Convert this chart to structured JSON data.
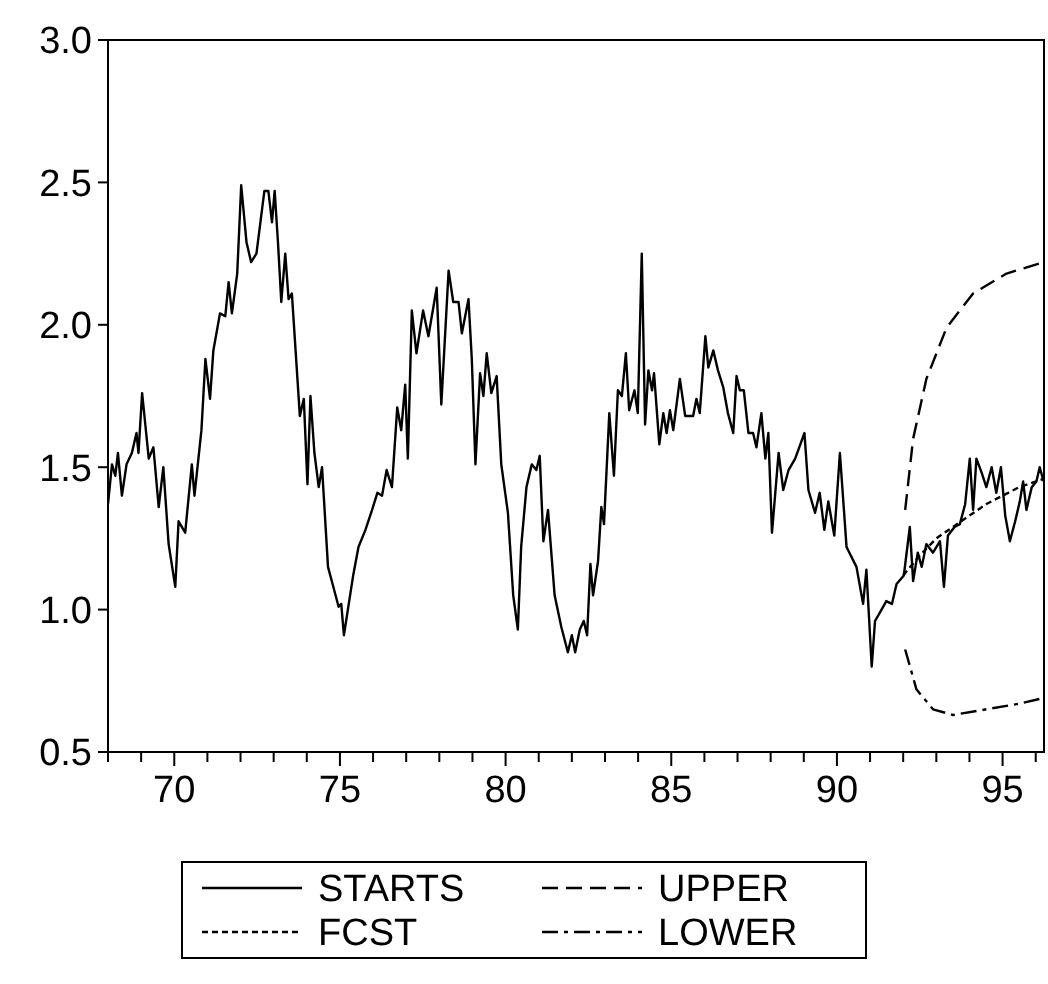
{
  "chart_data": {
    "type": "line",
    "xlim": [
      68,
      96.25
    ],
    "ylim": [
      0.5,
      3.0
    ],
    "yticks": [
      0.5,
      {
        "value": 1,
        "label": "1.0"
      },
      1.5,
      {
        "value": 2,
        "label": "2.0"
      },
      2.5,
      {
        "value": 3,
        "label": "3.0"
      }
    ],
    "xticks": [
      {
        "value": 68,
        "label": null
      },
      {
        "value": 69,
        "label": null
      },
      70,
      {
        "value": 71,
        "label": null
      },
      {
        "value": 72,
        "label": null
      },
      {
        "value": 73,
        "label": null
      },
      {
        "value": 74,
        "label": null
      },
      75,
      {
        "value": 76,
        "label": null
      },
      {
        "value": 77,
        "label": null
      },
      {
        "value": 78,
        "label": null
      },
      {
        "value": 79,
        "label": null
      },
      80,
      {
        "value": 81,
        "label": null
      },
      {
        "value": 82,
        "label": null
      },
      {
        "value": 83,
        "label": null
      },
      {
        "value": 84,
        "label": null
      },
      85,
      {
        "value": 86,
        "label": null
      },
      {
        "value": 87,
        "label": null
      },
      {
        "value": 88,
        "label": null
      },
      {
        "value": 89,
        "label": null
      },
      90,
      {
        "value": 91,
        "label": null
      },
      {
        "value": 92,
        "label": null
      },
      {
        "value": 93,
        "label": null
      },
      {
        "value": 94,
        "label": null
      },
      95,
      {
        "value": 96,
        "label": null
      }
    ],
    "legend": "bottom",
    "grid": false,
    "series": [
      {
        "name": "STARTS",
        "color": "#000000",
        "line_style": "solid",
        "x": [
          68.0,
          68.12,
          68.22,
          68.3,
          68.42,
          68.56,
          68.72,
          68.86,
          68.92,
          69.03,
          69.23,
          69.37,
          69.53,
          69.67,
          69.83,
          70.03,
          70.13,
          70.33,
          70.53,
          70.61,
          70.82,
          70.94,
          71.08,
          71.18,
          71.38,
          71.54,
          71.64,
          71.74,
          71.9,
          72.02,
          72.18,
          72.32,
          72.48,
          72.72,
          72.84,
          72.95,
          73.03,
          73.13,
          73.23,
          73.35,
          73.45,
          73.55,
          73.79,
          73.91,
          74.02,
          74.11,
          74.23,
          74.36,
          74.46,
          74.64,
          74.8,
          74.96,
          75.04,
          75.12,
          75.24,
          75.4,
          75.56,
          75.77,
          75.97,
          76.13,
          76.27,
          76.41,
          76.57,
          76.73,
          76.85,
          76.97,
          77.05,
          77.17,
          77.31,
          77.51,
          77.67,
          77.92,
          78.06,
          78.28,
          78.42,
          78.58,
          78.68,
          78.88,
          78.98,
          79.09,
          79.23,
          79.33,
          79.43,
          79.57,
          79.73,
          79.87,
          80.07,
          80.23,
          80.37,
          80.47,
          80.63,
          80.79,
          80.93,
          81.03,
          81.14,
          81.28,
          81.48,
          81.68,
          81.88,
          82.0,
          82.1,
          82.24,
          82.36,
          82.46,
          82.56,
          82.64,
          82.79,
          82.89,
          82.97,
          83.13,
          83.27,
          83.39,
          83.51,
          83.63,
          83.73,
          83.89,
          83.99,
          84.11,
          84.21,
          84.31,
          84.42,
          84.48,
          84.64,
          84.76,
          84.86,
          84.96,
          85.06,
          85.26,
          85.42,
          85.66,
          85.76,
          85.86,
          86.03,
          86.12,
          86.27,
          86.41,
          86.57,
          86.71,
          86.87,
          86.97,
          87.07,
          87.19,
          87.33,
          87.47,
          87.57,
          87.72,
          87.84,
          87.93,
          88.04,
          88.24,
          88.38,
          88.54,
          88.74,
          89.02,
          89.14,
          89.34,
          89.48,
          89.62,
          89.74,
          89.92,
          90.09,
          90.29,
          90.59,
          90.79,
          90.89,
          91.05,
          91.15,
          91.3,
          91.49,
          91.66,
          91.8,
          92.02,
          92.2,
          92.3,
          92.44,
          92.56,
          92.7,
          92.9,
          93.11,
          93.23,
          93.35,
          93.55,
          93.71,
          93.87,
          94.01,
          94.11,
          94.21,
          94.37,
          94.51,
          94.67,
          94.81,
          94.95,
          95.08,
          95.22,
          95.38,
          95.52,
          95.62,
          95.72,
          95.88,
          96.02,
          96.12,
          96.24
        ],
        "values": [
          1.37,
          1.51,
          1.47,
          1.55,
          1.4,
          1.51,
          1.55,
          1.62,
          1.55,
          1.76,
          1.53,
          1.57,
          1.36,
          1.5,
          1.23,
          1.08,
          1.31,
          1.27,
          1.51,
          1.4,
          1.63,
          1.88,
          1.74,
          1.91,
          2.04,
          2.03,
          2.15,
          2.04,
          2.18,
          2.49,
          2.29,
          2.22,
          2.25,
          2.47,
          2.47,
          2.36,
          2.47,
          2.29,
          2.08,
          2.25,
          2.09,
          2.11,
          1.68,
          1.74,
          1.44,
          1.75,
          1.55,
          1.43,
          1.5,
          1.15,
          1.08,
          1.01,
          1.02,
          0.91,
          1.0,
          1.12,
          1.22,
          1.28,
          1.35,
          1.41,
          1.4,
          1.49,
          1.43,
          1.71,
          1.63,
          1.79,
          1.53,
          2.05,
          1.9,
          2.05,
          1.96,
          2.13,
          1.72,
          2.19,
          2.08,
          2.08,
          1.97,
          2.09,
          1.88,
          1.51,
          1.83,
          1.75,
          1.9,
          1.76,
          1.82,
          1.51,
          1.34,
          1.05,
          0.93,
          1.22,
          1.43,
          1.51,
          1.49,
          1.54,
          1.24,
          1.35,
          1.05,
          0.94,
          0.85,
          0.91,
          0.85,
          0.93,
          0.96,
          0.91,
          1.16,
          1.05,
          1.17,
          1.36,
          1.3,
          1.69,
          1.47,
          1.77,
          1.75,
          1.9,
          1.7,
          1.77,
          1.69,
          2.25,
          1.65,
          1.84,
          1.77,
          1.83,
          1.58,
          1.69,
          1.62,
          1.7,
          1.63,
          1.81,
          1.68,
          1.68,
          1.74,
          1.69,
          1.96,
          1.85,
          1.91,
          1.84,
          1.78,
          1.69,
          1.62,
          1.82,
          1.77,
          1.77,
          1.62,
          1.62,
          1.57,
          1.69,
          1.53,
          1.62,
          1.27,
          1.55,
          1.42,
          1.49,
          1.53,
          1.62,
          1.42,
          1.34,
          1.41,
          1.28,
          1.38,
          1.26,
          1.55,
          1.22,
          1.15,
          1.02,
          1.14,
          0.8,
          0.96,
          0.99,
          1.03,
          1.02,
          1.09,
          1.12,
          1.29,
          1.1,
          1.2,
          1.15,
          1.23,
          1.2,
          1.24,
          1.08,
          1.26,
          1.29,
          1.3,
          1.37,
          1.53,
          1.35,
          1.53,
          1.48,
          1.43,
          1.5,
          1.41,
          1.5,
          1.33,
          1.24,
          1.31,
          1.38,
          1.45,
          1.35,
          1.43,
          1.45,
          1.5,
          1.45
        ]
      },
      {
        "name": "FCST",
        "color": "#000000",
        "line_style": "dotted",
        "x": [
          92.0,
          92.5,
          93.0,
          93.5,
          94.0,
          94.5,
          95.0,
          95.5,
          96.25
        ],
        "values": [
          1.12,
          1.19,
          1.25,
          1.29,
          1.33,
          1.37,
          1.4,
          1.43,
          1.46
        ]
      },
      {
        "name": "UPPER",
        "color": "#000000",
        "line_style": "dashed",
        "x": [
          92.06,
          92.3,
          92.7,
          93.31,
          94.11,
          95.12,
          96.25
        ],
        "values": [
          1.35,
          1.6,
          1.81,
          1.99,
          2.11,
          2.18,
          2.22
        ]
      },
      {
        "name": "LOWER",
        "color": "#000000",
        "line_style": "dashdot",
        "x": [
          92.06,
          92.4,
          92.9,
          93.5,
          94.51,
          95.52,
          96.25
        ],
        "values": [
          0.86,
          0.72,
          0.65,
          0.63,
          0.65,
          0.67,
          0.69
        ]
      }
    ]
  }
}
